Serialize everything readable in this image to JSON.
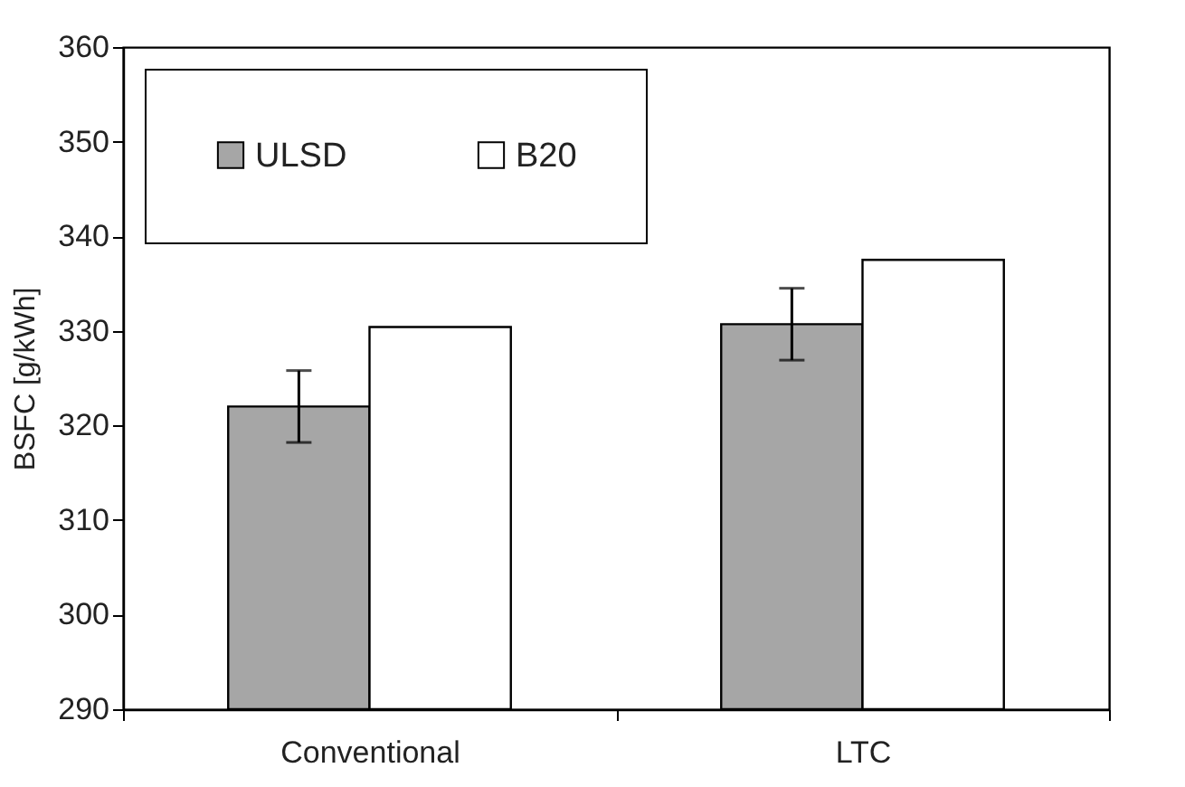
{
  "chart_data": {
    "type": "bar",
    "ylabel": "BSFC [g/kWh]",
    "categories": [
      "Conventional",
      "LTC"
    ],
    "series": [
      {
        "name": "ULSD",
        "color": "#a6a6a6",
        "values": [
          322,
          330.7
        ],
        "errors": [
          3.8,
          3.8
        ]
      },
      {
        "name": "B20",
        "color": "#ffffff",
        "values": [
          330.4,
          337.5
        ]
      }
    ],
    "ylim": [
      290,
      360
    ],
    "yticks": [
      290,
      300,
      310,
      320,
      330,
      340,
      350,
      360
    ],
    "grid": false,
    "legend": "top left"
  }
}
